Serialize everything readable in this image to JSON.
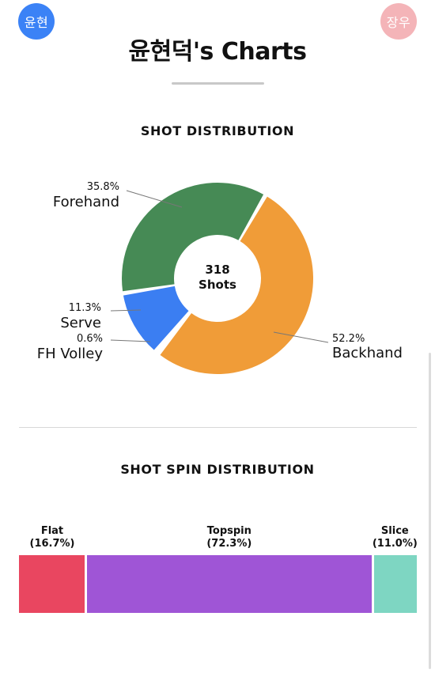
{
  "header": {
    "left_avatar": "윤현",
    "right_avatar": "장우",
    "title": "윤현덕's Charts"
  },
  "shot_distribution": {
    "title": "SHOT DISTRIBUTION",
    "center_value": "318",
    "center_label": "Shots"
  },
  "spin_distribution": {
    "title": "SHOT SPIN DISTRIBUTION"
  },
  "colors": {
    "forehand": "#468a55",
    "backhand": "#f09c38",
    "serve": "#3b7ef2",
    "fh_volley": "#3b7ef2",
    "flat": "#e94660",
    "topspin": "#9f55d6",
    "slice": "#7ed6c2"
  },
  "chart_data": [
    {
      "type": "pie",
      "title": "SHOT DISTRIBUTION",
      "total": 318,
      "total_label": "Shots",
      "slices": [
        {
          "name": "Backhand",
          "value": 52.2,
          "label": "52.2%"
        },
        {
          "name": "FH Volley",
          "value": 0.6,
          "label": "0.6%"
        },
        {
          "name": "Serve",
          "value": 11.3,
          "label": "11.3%"
        },
        {
          "name": "Forehand",
          "value": 35.8,
          "label": "35.8%"
        }
      ]
    },
    {
      "type": "bar",
      "title": "SHOT SPIN DISTRIBUTION",
      "stacked": true,
      "categories": [
        "Flat",
        "Topspin",
        "Slice"
      ],
      "values": [
        16.7,
        72.3,
        11.0
      ],
      "labels": [
        "(16.7%)",
        "(72.3%)",
        "(11.0%)"
      ]
    }
  ]
}
